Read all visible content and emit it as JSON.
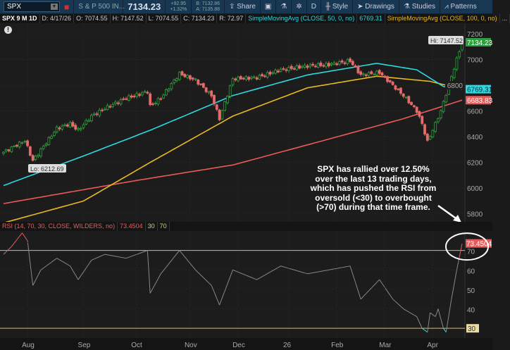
{
  "toolbar": {
    "symbol": "SPX",
    "description": "S & P 500 IN...",
    "last": "7134.23",
    "change": "+92.95",
    "change_pct": "+1.32%",
    "bid": "B: 7132.86",
    "ask": "A: 7135.88",
    "share": "Share",
    "period": "D",
    "style": "Style",
    "drawings": "Drawings",
    "studies": "Studies",
    "patterns": "Patterns"
  },
  "info": {
    "title": "SPX 9 M 1D",
    "date": "D: 4/17/26",
    "open": "O: 7074.55",
    "high": "H: 7147.52",
    "low": "L: 7074.55",
    "close": "C: 7134.23",
    "range": "R: 72.97",
    "sma50": "SimpleMovingAvg (CLOSE, 50, 0, no)",
    "sma50_val": "6769.31",
    "sma100": "SimpleMovingAvg (CLOSE, 100, 0, no)",
    "more": "..."
  },
  "rsi_header": {
    "label": "RSI (14, 70, 30, CLOSE, WILDERS, no)",
    "value": "73.4504",
    "lower": "30",
    "upper": "70"
  },
  "annotation": "SPX has rallied over 12.50% over the last 13 trading days, which has pushed the RSI from oversold (<30) to overbought (>70) during that time frame.",
  "colors": {
    "up": "#2e9e3e",
    "down": "#e56a6a",
    "sma50": "#2fd8e0",
    "sma100": "#e8b923",
    "sma200": "#e85a5a",
    "rsi": "#888888"
  },
  "chart_data": {
    "type": "candlestick",
    "yticks": [
      5800,
      6000,
      6200,
      6400,
      6600,
      6800,
      7000,
      7200
    ],
    "ylim": [
      5760,
      7260
    ],
    "xticks": [
      {
        "label": "Aug",
        "day": 9
      },
      {
        "label": "Sep",
        "day": 30
      },
      {
        "label": "Oct",
        "day": 50
      },
      {
        "label": "Nov",
        "day": 70
      },
      {
        "label": "Dec",
        "day": 88
      },
      {
        "label": "26",
        "day": 107
      },
      {
        "label": "Feb",
        "day": 125
      },
      {
        "label": "Mar",
        "day": 143
      },
      {
        "label": "Apr",
        "day": 161
      }
    ],
    "days": 173,
    "hi_label": "Hi: 7147.52",
    "lo_label": "Lo: 6212.69",
    "price_tags": [
      {
        "value": 7134.23,
        "label": "7134.23",
        "color": "#2e9e3e"
      },
      {
        "value": 6769.31,
        "label": "6769.31",
        "color": "#2fd8e0"
      },
      {
        "value": 6683.83,
        "label": "6683.83",
        "color": "#e85a5a"
      }
    ],
    "close_anchors": [
      [
        0,
        6280
      ],
      [
        8,
        6370
      ],
      [
        11,
        6213
      ],
      [
        20,
        6465
      ],
      [
        25,
        6500
      ],
      [
        28,
        6450
      ],
      [
        33,
        6560
      ],
      [
        38,
        6620
      ],
      [
        46,
        6700
      ],
      [
        54,
        6750
      ],
      [
        55,
        6640
      ],
      [
        59,
        6700
      ],
      [
        66,
        6890
      ],
      [
        72,
        6840
      ],
      [
        78,
        6720
      ],
      [
        81,
        6540
      ],
      [
        86,
        6850
      ],
      [
        95,
        6860
      ],
      [
        104,
        6920
      ],
      [
        114,
        6950
      ],
      [
        122,
        6960
      ],
      [
        130,
        6990
      ],
      [
        134,
        6880
      ],
      [
        141,
        6900
      ],
      [
        146,
        6800
      ],
      [
        150,
        6720
      ],
      [
        155,
        6600
      ],
      [
        157,
        6500
      ],
      [
        159,
        6360
      ],
      [
        162,
        6500
      ],
      [
        164,
        6600
      ],
      [
        167,
        6800
      ],
      [
        170,
        7000
      ],
      [
        172,
        7134.23
      ]
    ],
    "sma50": [
      [
        0,
        6020
      ],
      [
        30,
        6250
      ],
      [
        55,
        6450
      ],
      [
        86,
        6720
      ],
      [
        114,
        6880
      ],
      [
        140,
        6970
      ],
      [
        155,
        6920
      ],
      [
        165,
        6790
      ],
      [
        172,
        6769.31
      ]
    ],
    "sma100": [
      [
        0,
        5730
      ],
      [
        30,
        5900
      ],
      [
        55,
        6200
      ],
      [
        86,
        6560
      ],
      [
        114,
        6780
      ],
      [
        140,
        6870
      ],
      [
        160,
        6830
      ],
      [
        166,
        6800
      ],
      [
        172,
        6830
      ]
    ],
    "sma200": [
      [
        0,
        5880
      ],
      [
        50,
        6060
      ],
      [
        86,
        6180
      ],
      [
        120,
        6370
      ],
      [
        150,
        6540
      ],
      [
        172,
        6683.83
      ]
    ],
    "rsi": {
      "ylim": [
        25,
        80
      ],
      "yticks": [
        30,
        40,
        50,
        60,
        70
      ],
      "levels": [
        30,
        70
      ],
      "values": [
        [
          0,
          68
        ],
        [
          3,
          72
        ],
        [
          7,
          79
        ],
        [
          9,
          75
        ],
        [
          11,
          52
        ],
        [
          14,
          60
        ],
        [
          20,
          66
        ],
        [
          25,
          62
        ],
        [
          28,
          55
        ],
        [
          33,
          65
        ],
        [
          38,
          68
        ],
        [
          46,
          66
        ],
        [
          54,
          70
        ],
        [
          55,
          48
        ],
        [
          59,
          58
        ],
        [
          66,
          70
        ],
        [
          72,
          60
        ],
        [
          78,
          52
        ],
        [
          81,
          42
        ],
        [
          86,
          60
        ],
        [
          95,
          55
        ],
        [
          104,
          62
        ],
        [
          114,
          58
        ],
        [
          122,
          60
        ],
        [
          130,
          62
        ],
        [
          134,
          45
        ],
        [
          141,
          55
        ],
        [
          146,
          45
        ],
        [
          150,
          40
        ],
        [
          155,
          36
        ],
        [
          157,
          30
        ],
        [
          159,
          28
        ],
        [
          160,
          38
        ],
        [
          162,
          36
        ],
        [
          163,
          40
        ],
        [
          165,
          30
        ],
        [
          166,
          28
        ],
        [
          168,
          45
        ],
        [
          170,
          60
        ],
        [
          172,
          73.45
        ]
      ]
    }
  }
}
